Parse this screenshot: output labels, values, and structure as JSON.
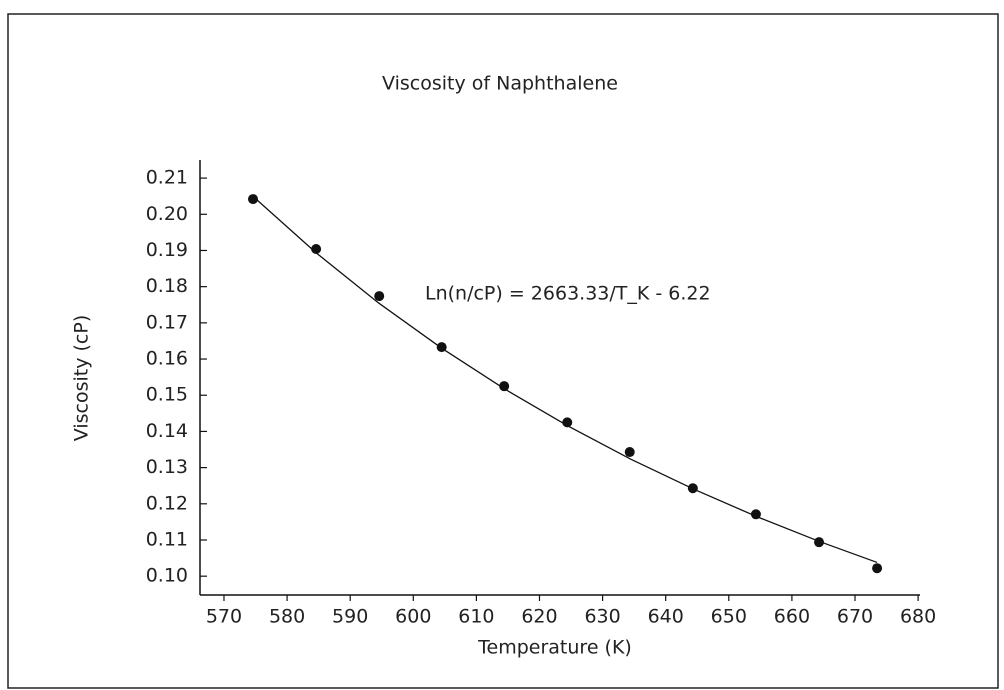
{
  "chart_data": {
    "type": "scatter",
    "title": "Viscosity of Naphthalene",
    "x_label": "Temperature (K)",
    "y_label": "Viscosity (cP)",
    "annotation": "Ln(n/cP) = 2663.33/T_K - 6.22",
    "series": [
      {
        "color": "#111111",
        "x": [
          574.6,
          584.6,
          594.6,
          604.5,
          614.4,
          624.4,
          634.3,
          644.3,
          654.3,
          664.3,
          673.5
        ],
        "values": [
          0.2042,
          0.1904,
          0.1774,
          0.1633,
          0.1525,
          0.1425,
          0.1343,
          0.1243,
          0.1171,
          0.1094,
          0.1022
        ]
      },
      {
        "color": "#111111",
        "x": [
          574.5,
          584.5,
          594.5,
          604.5,
          614.5,
          624.5,
          634.5,
          644.5,
          654.5,
          664.5,
          673.5
        ],
        "values": [
          0.2051,
          0.1895,
          0.1755,
          0.163,
          0.1517,
          0.1415,
          0.1323,
          0.124,
          0.1164,
          0.1095,
          0.1038
        ]
      }
    ],
    "xlim": [
      566.2,
      680.3
    ],
    "xticks": [
      570,
      580,
      590,
      600,
      610,
      620,
      630,
      640,
      650,
      660,
      670,
      680
    ],
    "ylim": [
      0.0948,
      0.215
    ],
    "yticks": [
      {
        "value": 0.1,
        "label": "0.10"
      },
      0.11,
      0.12,
      0.13,
      0.14,
      0.15,
      0.16,
      0.17,
      0.18,
      0.19,
      {
        "value": 0.2,
        "label": "0.20"
      },
      0.21
    ]
  }
}
